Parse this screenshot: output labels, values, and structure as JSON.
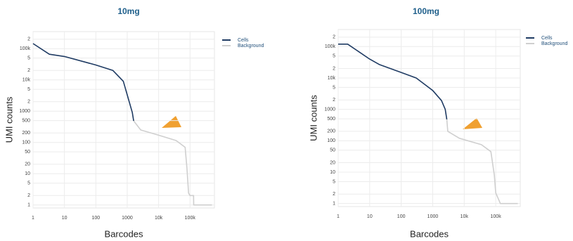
{
  "chart_data": [
    {
      "type": "line",
      "title": "10mg",
      "x_label": "Barcodes",
      "y_label": "UMI counts",
      "xscale": "log",
      "yscale": "log",
      "grid": true,
      "legend": "top-right",
      "xlim": [
        1,
        600000
      ],
      "ylim": [
        0.8,
        350000
      ],
      "xticks": [
        1,
        10,
        100,
        1000,
        {
          "value": 10000,
          "label": "10k"
        },
        {
          "value": 100000,
          "label": "100k"
        }
      ],
      "yticks": [
        1,
        2,
        5,
        10,
        20,
        50,
        100,
        200,
        500,
        1000,
        {
          "value": 2000,
          "label": "2"
        },
        {
          "value": 5000,
          "label": "5"
        },
        {
          "value": 10000,
          "label": "10k"
        },
        {
          "value": 20000,
          "label": "2"
        },
        {
          "value": 50000,
          "label": "5"
        },
        {
          "value": 100000,
          "label": "100k"
        },
        {
          "value": 200000,
          "label": "2"
        }
      ],
      "series": [
        {
          "name": "Cells",
          "color": "#1f3b63",
          "x": [
            1,
            3.3,
            10,
            100,
            350,
            750,
            1000,
            1450,
            1600
          ],
          "values": [
            145000,
            66000,
            56000,
            30000,
            20000,
            9000,
            3300,
            900,
            490
          ]
        },
        {
          "name": "Background",
          "color": "#cfcfcf",
          "x": [
            1600,
            2700,
            10000,
            36000,
            70000,
            80000,
            90000,
            100000,
            130000,
            131000,
            500000
          ],
          "values": [
            490,
            250,
            170,
            115,
            70,
            15,
            2.4,
            2,
            2,
            1,
            1
          ]
        }
      ]
    },
    {
      "type": "line",
      "title": "100mg",
      "x_label": "Barcodes",
      "y_label": "UMI counts",
      "xscale": "log",
      "yscale": "log",
      "grid": true,
      "legend": "top-right",
      "xlim": [
        1,
        600000
      ],
      "ylim": [
        0.8,
        350000
      ],
      "xticks": [
        1,
        10,
        100,
        1000,
        {
          "value": 10000,
          "label": "10k"
        },
        {
          "value": 100000,
          "label": "100k"
        }
      ],
      "yticks": [
        1,
        2,
        5,
        10,
        20,
        50,
        100,
        200,
        500,
        1000,
        {
          "value": 2000,
          "label": "2"
        },
        {
          "value": 5000,
          "label": "5"
        },
        {
          "value": 10000,
          "label": "10k"
        },
        {
          "value": 20000,
          "label": "2"
        },
        {
          "value": 50000,
          "label": "5"
        },
        {
          "value": 100000,
          "label": "100k"
        },
        {
          "value": 200000,
          "label": "2"
        }
      ],
      "series": [
        {
          "name": "Cells",
          "color": "#1f3b63",
          "x": [
            1,
            2,
            10,
            20,
            100,
            300,
            1000,
            1900,
            2500,
            2800
          ],
          "values": [
            120000,
            120000,
            40000,
            27000,
            15000,
            10000,
            4000,
            1900,
            1000,
            480
          ]
        },
        {
          "name": "Background",
          "color": "#cfcfcf",
          "x": [
            2800,
            3000,
            7000,
            35000,
            70000,
            90000,
            100000,
            140000,
            500000
          ],
          "values": [
            480,
            200,
            120,
            75,
            45,
            8,
            2.2,
            1,
            1
          ]
        }
      ]
    }
  ]
}
